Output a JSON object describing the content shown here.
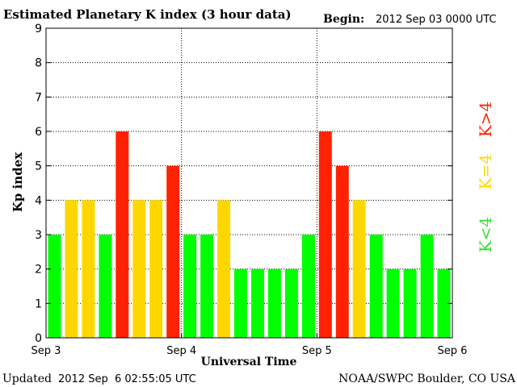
{
  "chart_data": {
    "type": "bar",
    "title": "Estimated Planetary K index (3 hour data)",
    "begin_label": "Begin:",
    "begin_value": "2012 Sep 03 0000 UTC",
    "xlabel": "Universal Time",
    "ylabel": "Kp index",
    "ylim": [
      0,
      9
    ],
    "y_ticks": [
      "0",
      "1",
      "2",
      "3",
      "4",
      "5",
      "6",
      "7",
      "8",
      "9"
    ],
    "x_ticks": [
      "Sep 3",
      "Sep 4",
      "Sep 5",
      "Sep 6"
    ],
    "values": [
      3,
      4,
      4,
      3,
      6,
      4,
      4,
      5,
      3,
      3,
      4,
      2,
      2,
      2,
      2,
      3,
      6,
      5,
      4,
      3,
      2,
      2,
      3,
      2
    ],
    "grid": "dotted",
    "legend": {
      "placement": "right",
      "items": [
        {
          "label": "K<4",
          "color": "#00ff00"
        },
        {
          "label": "K=4",
          "color": "#ffd700"
        },
        {
          "label": "K>4",
          "color": "#ff2200"
        }
      ]
    }
  },
  "footer": {
    "updated_label": "Updated",
    "updated_value": "2012 Sep  6 02:55:05 UTC",
    "source": "NOAA/SWPC Boulder, CO USA"
  }
}
